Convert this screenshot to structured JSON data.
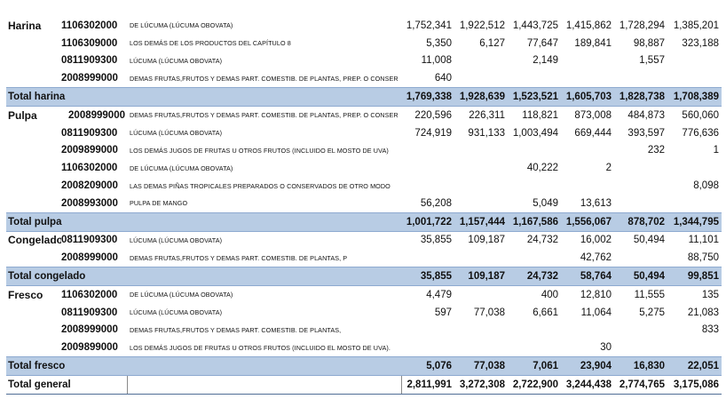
{
  "groups": [
    {
      "category": "Harina",
      "rows": [
        {
          "code": "1106302000",
          "desc": "DE LÚCUMA (LÚCUMA OBOVATA)",
          "values": [
            "1,752,341",
            "1,922,512",
            "1,443,725",
            "1,415,862",
            "1,728,294",
            "1,385,201"
          ]
        },
        {
          "code": "1106309000",
          "desc": "LOS DEMÁS DE LOS PRODUCTOS DEL CAPÍTULO 8",
          "values": [
            "5,350",
            "6,127",
            "77,647",
            "189,841",
            "98,887",
            "323,188"
          ]
        },
        {
          "code": "0811909300",
          "desc": "LÚCUMA (LÚCUMA OBOVATA)",
          "values": [
            "11,008",
            "",
            "2,149",
            "",
            "1,557",
            ""
          ]
        },
        {
          "code": "2008999000",
          "desc": "DEMAS FRUTAS,FRUTOS Y DEMAS PART. COMESTIB. DE PLANTAS, PREP. O CONSER",
          "values": [
            "640",
            "",
            "",
            "",
            "",
            ""
          ]
        }
      ],
      "total_label": "Total harina",
      "total_values": [
        "1,769,338",
        "1,928,639",
        "1,523,521",
        "1,605,703",
        "1,828,738",
        "1,708,389"
      ]
    },
    {
      "category": "Pulpa",
      "rows": [
        {
          "code": "2008999000",
          "desc": "DEMAS FRUTAS,FRUTOS Y DEMAS PART. COMESTIB. DE PLANTAS, PREP. O CONSER",
          "values": [
            "220,596",
            "226,311",
            "118,821",
            "873,008",
            "484,873",
            "560,060"
          ]
        },
        {
          "code": "0811909300",
          "desc": "LÚCUMA (LÚCUMA OBOVATA)",
          "values": [
            "724,919",
            "931,133",
            "1,003,494",
            "669,444",
            "393,597",
            "776,636"
          ]
        },
        {
          "code": "2009899000",
          "desc": "LOS DEMÁS JUGOS DE FRUTAS U OTROS FRUTOS (INCLUIDO EL MOSTO DE UVA)",
          "values": [
            "",
            "",
            "",
            "",
            "232",
            "1"
          ]
        },
        {
          "code": "1106302000",
          "desc": "DE LÚCUMA (LÚCUMA OBOVATA)",
          "values": [
            "",
            "",
            "40,222",
            "2",
            "",
            ""
          ]
        },
        {
          "code": "2008209000",
          "desc": "LAS DEMAS PIÑAS TROPICALES PREPARADOS O CONSERVADOS DE OTRO MODO",
          "values": [
            "",
            "",
            "",
            "",
            "",
            "8,098"
          ]
        },
        {
          "code": "2008993000",
          "desc": "PULPA DE MANGO",
          "values": [
            "56,208",
            "",
            "5,049",
            "13,613",
            "",
            ""
          ]
        }
      ],
      "total_label": "Total pulpa",
      "total_values": [
        "1,001,722",
        "1,157,444",
        "1,167,586",
        "1,556,067",
        "878,702",
        "1,344,795"
      ]
    },
    {
      "category": "Congelado",
      "rows": [
        {
          "code": "0811909300",
          "desc": "LÚCUMA (LÚCUMA OBOVATA)",
          "values": [
            "35,855",
            "109,187",
            "24,732",
            "16,002",
            "50,494",
            "11,101"
          ]
        },
        {
          "code": "2008999000",
          "desc": "DEMAS FRUTAS,FRUTOS Y DEMAS PART. COMESTIB. DE PLANTAS, P",
          "values": [
            "",
            "",
            "",
            "42,762",
            "",
            "88,750"
          ]
        }
      ],
      "total_label": "Total congelado",
      "total_values": [
        "35,855",
        "109,187",
        "24,732",
        "58,764",
        "50,494",
        "99,851"
      ]
    },
    {
      "category": "Fresco",
      "rows": [
        {
          "code": "1106302000",
          "desc": "DE LÚCUMA (LÚCUMA OBOVATA)",
          "values": [
            "4,479",
            "",
            "400",
            "12,810",
            "11,555",
            "135"
          ]
        },
        {
          "code": "0811909300",
          "desc": "LÚCUMA (LÚCUMA OBOVATA)",
          "values": [
            "597",
            "77,038",
            "6,661",
            "11,064",
            "5,275",
            "21,083"
          ]
        },
        {
          "code": "2008999000",
          "desc": "DEMAS FRUTAS,FRUTOS Y DEMAS PART. COMESTIB. DE PLANTAS,",
          "values": [
            "",
            "",
            "",
            "",
            "",
            "833"
          ]
        },
        {
          "code": "2009899000",
          "desc": "LOS DEMÁS JUGOS DE FRUTAS U OTROS FRUTOS (INCLUIDO EL MOSTO DE UVA).",
          "values": [
            "",
            "",
            "",
            "30",
            "",
            ""
          ]
        }
      ],
      "total_label": "Total fresco",
      "total_values": [
        "5,076",
        "77,038",
        "7,061",
        "23,904",
        "16,830",
        "22,051"
      ]
    }
  ],
  "grand_total": {
    "label": "Total general",
    "values": [
      "2,811,991",
      "3,272,308",
      "2,722,900",
      "3,244,438",
      "2,774,765",
      "3,175,086"
    ]
  },
  "colors": {
    "total_band": "#b8cce4",
    "text": "#111111"
  }
}
